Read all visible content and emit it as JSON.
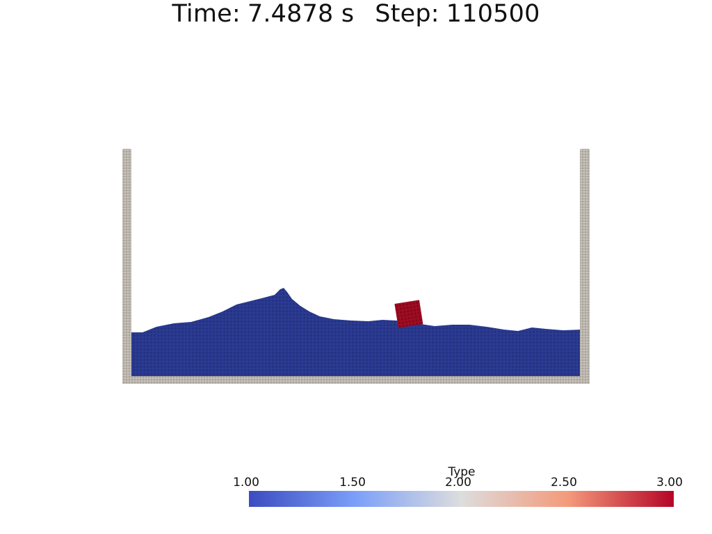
{
  "title": {
    "time_label": "Time:",
    "time_value": "7.4878 s",
    "step_label": "Step:",
    "step_value": "110500"
  },
  "colorbar": {
    "title": "Type",
    "ticks": [
      "1.00",
      "1.50",
      "2.00",
      "2.50",
      "3.00"
    ],
    "range": [
      1.0,
      3.0
    ],
    "colormap": "cool-to-warm",
    "colors": {
      "low": "#3b4cc0",
      "mid": "#dddddd",
      "high": "#b40426"
    }
  },
  "scene": {
    "colors": {
      "wall": "#b8b4ac",
      "fluid": "#2a3990",
      "block": "#9b0a22"
    }
  }
}
